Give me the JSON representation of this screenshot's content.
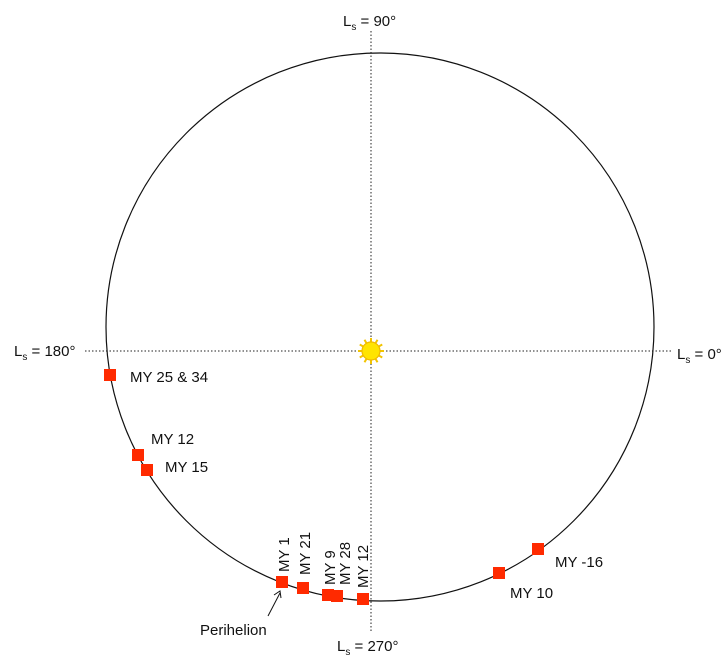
{
  "axis_labels": {
    "top": {
      "symbol": "L",
      "sub": "s",
      "value": " = 90°"
    },
    "bottom": {
      "symbol": "L",
      "sub": "s",
      "value": " = 270°"
    },
    "left": {
      "symbol": "L",
      "sub": "s",
      "value": " = 180°"
    },
    "right": {
      "symbol": "L",
      "sub": "s",
      "value": " = 0°"
    }
  },
  "sun": {
    "name": "sun-icon",
    "color": "#f6d800"
  },
  "marker_color": "#ff2a00",
  "markers": [
    {
      "label": "MY 25 & 34"
    },
    {
      "label": "MY 12"
    },
    {
      "label": "MY 15"
    },
    {
      "label": "MY 1"
    },
    {
      "label": "MY 21"
    },
    {
      "label": "MY 9"
    },
    {
      "label": "MY 28"
    },
    {
      "label": "MY 12"
    },
    {
      "label": "MY 10"
    },
    {
      "label": "MY -16"
    }
  ],
  "annotation": {
    "text": "Perihelion"
  }
}
